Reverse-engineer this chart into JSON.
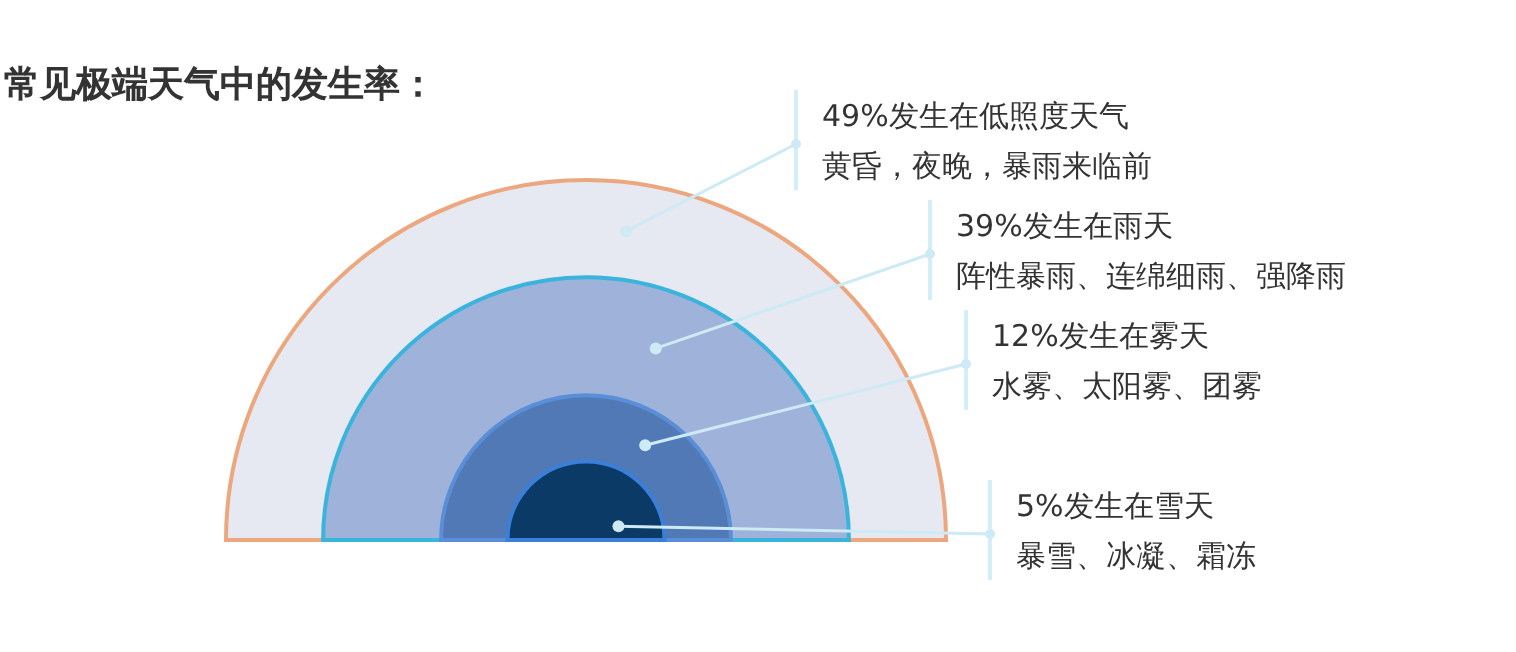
{
  "chart_data": {
    "type": "other",
    "title": "常见极端天气中的发生率：",
    "categories": [
      "发生在低照度天气",
      "发生在雨天",
      "发生在雾天",
      "发生在雪天"
    ],
    "values": [
      49,
      39,
      12,
      5
    ],
    "value_labels": [
      "49%",
      "39%",
      "12%",
      "5%"
    ],
    "colors": [
      "#e6e9f2",
      "#9fb2da",
      "#5079b6",
      "#0b3a66"
    ],
    "annotations": [
      "黄昏，夜晚，暴雨来临前",
      "阵性暴雨、连绵细雨、强降雨",
      "水雾、太阳雾、团雾",
      "暴雪、冰凝、霜冻"
    ]
  }
}
